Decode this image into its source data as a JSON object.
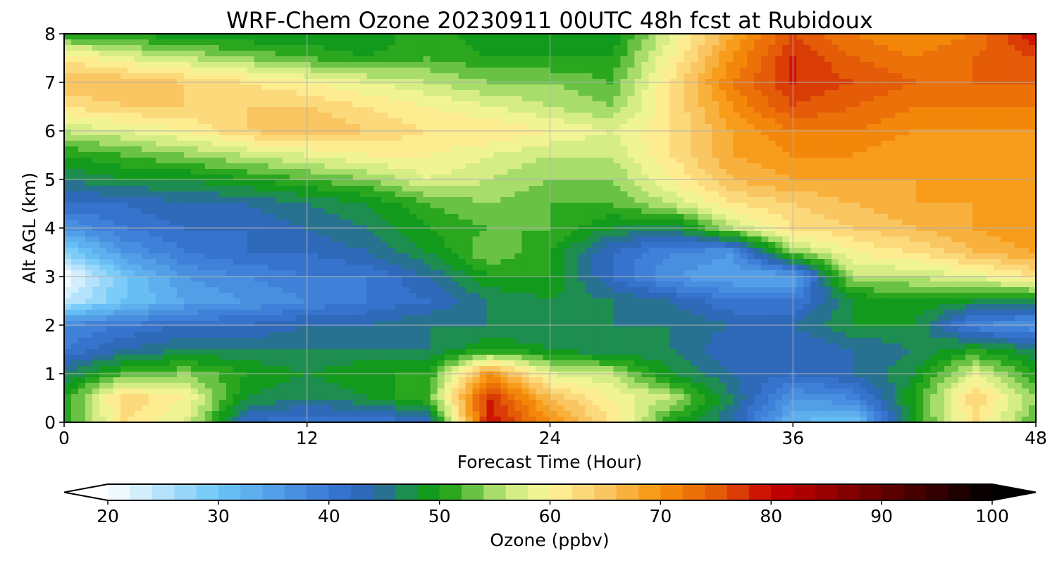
{
  "chart_data": {
    "type": "heatmap",
    "title": "WRF-Chem Ozone  20230911 00UTC 48h fcst at Rubidoux",
    "xlabel": "Forecast Time (Hour)",
    "ylabel": "Alt AGL (km)",
    "xlim": [
      0,
      48
    ],
    "ylim": [
      0,
      8
    ],
    "x_ticks": [
      "0",
      "12",
      "24",
      "36",
      "48"
    ],
    "y_ticks": [
      "0",
      "1",
      "2",
      "3",
      "4",
      "5",
      "6",
      "7",
      "8"
    ],
    "grid": true,
    "x": [
      0,
      3,
      6,
      9,
      12,
      15,
      18,
      21,
      24,
      27,
      30,
      33,
      36,
      39,
      42,
      45,
      48
    ],
    "y": [
      0,
      0.5,
      1,
      1.5,
      2,
      2.5,
      3,
      3.5,
      4,
      4.5,
      5,
      5.5,
      6,
      6.5,
      7,
      7.5,
      8
    ],
    "z_ppbv": [
      [
        50,
        62,
        58,
        42,
        40,
        40,
        42,
        80,
        70,
        62,
        50,
        44,
        32,
        30,
        50,
        62,
        52
      ],
      [
        50,
        64,
        60,
        48,
        46,
        48,
        52,
        78,
        66,
        60,
        56,
        46,
        36,
        38,
        50,
        64,
        54
      ],
      [
        46,
        52,
        54,
        50,
        48,
        50,
        50,
        70,
        58,
        56,
        48,
        44,
        42,
        44,
        48,
        58,
        50
      ],
      [
        40,
        44,
        46,
        46,
        46,
        46,
        46,
        50,
        48,
        46,
        46,
        42,
        42,
        44,
        46,
        50,
        46
      ],
      [
        38,
        40,
        42,
        42,
        44,
        44,
        46,
        46,
        46,
        46,
        46,
        44,
        44,
        48,
        48,
        38,
        36
      ],
      [
        24,
        30,
        34,
        36,
        38,
        40,
        42,
        46,
        48,
        46,
        44,
        40,
        40,
        48,
        50,
        48,
        48
      ],
      [
        20,
        30,
        36,
        38,
        40,
        40,
        44,
        50,
        50,
        42,
        36,
        34,
        34,
        56,
        56,
        58,
        62
      ],
      [
        28,
        36,
        40,
        42,
        42,
        44,
        48,
        54,
        50,
        42,
        38,
        36,
        54,
        60,
        62,
        66,
        68
      ],
      [
        36,
        40,
        42,
        42,
        44,
        46,
        50,
        52,
        52,
        48,
        46,
        56,
        62,
        64,
        66,
        68,
        70
      ],
      [
        42,
        42,
        44,
        44,
        46,
        48,
        52,
        54,
        52,
        52,
        56,
        62,
        64,
        66,
        68,
        68,
        70
      ],
      [
        46,
        48,
        48,
        50,
        52,
        54,
        58,
        56,
        54,
        54,
        60,
        66,
        68,
        68,
        68,
        68,
        68
      ],
      [
        50,
        52,
        54,
        56,
        58,
        60,
        60,
        58,
        56,
        56,
        62,
        68,
        70,
        70,
        68,
        68,
        68
      ],
      [
        56,
        58,
        60,
        64,
        66,
        64,
        62,
        62,
        60,
        58,
        62,
        68,
        72,
        72,
        70,
        70,
        70
      ],
      [
        62,
        64,
        64,
        64,
        64,
        62,
        60,
        58,
        56,
        54,
        62,
        70,
        76,
        74,
        72,
        72,
        72
      ],
      [
        66,
        66,
        64,
        62,
        60,
        58,
        56,
        54,
        54,
        52,
        62,
        72,
        78,
        76,
        74,
        74,
        74
      ],
      [
        62,
        58,
        56,
        54,
        52,
        50,
        52,
        50,
        50,
        50,
        60,
        70,
        78,
        74,
        72,
        74,
        76
      ],
      [
        50,
        50,
        48,
        48,
        48,
        48,
        52,
        48,
        48,
        48,
        58,
        68,
        76,
        72,
        70,
        72,
        80
      ]
    ],
    "colorbar": {
      "label": "Ozone  (ppbv)",
      "min": 20,
      "max": 100,
      "extend": "both",
      "tick_labels": [
        "20",
        "30",
        "40",
        "50",
        "60",
        "70",
        "80",
        "90",
        "100"
      ]
    },
    "colormap_anchors": [
      [
        20,
        "#ffffff"
      ],
      [
        30,
        "#6cc6f8"
      ],
      [
        40,
        "#3a78d6"
      ],
      [
        44,
        "#2a64b0"
      ],
      [
        48,
        "#1a9a30"
      ],
      [
        50,
        "#0a9a0a"
      ],
      [
        56,
        "#c8ea80"
      ],
      [
        60,
        "#fff79a"
      ],
      [
        64,
        "#fbd072"
      ],
      [
        70,
        "#f7920a"
      ],
      [
        76,
        "#e05008"
      ],
      [
        80,
        "#c80000"
      ],
      [
        88,
        "#780000"
      ],
      [
        100,
        "#000000"
      ]
    ]
  }
}
